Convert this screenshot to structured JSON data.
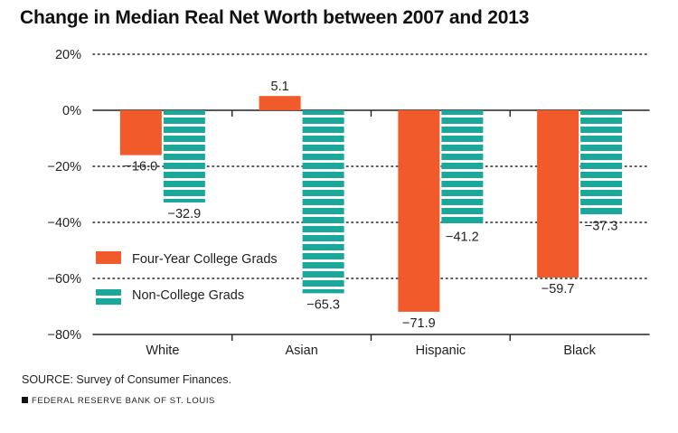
{
  "chart_data": {
    "type": "bar",
    "title": "Change in Median Real Net Worth between 2007 and 2013",
    "xlabel": "",
    "ylabel": "",
    "categories": [
      "White",
      "Asian",
      "Hispanic",
      "Black"
    ],
    "series": [
      {
        "name": "Four-Year College Grads",
        "color": "#f15a2b",
        "values": [
          -16.0,
          5.1,
          -71.9,
          -59.7
        ],
        "labels": [
          "−16.0",
          "5.1",
          "−71.9",
          "−59.7"
        ]
      },
      {
        "name": "Non-College Grads",
        "color": "#1aa89a",
        "values": [
          -32.9,
          -65.3,
          -41.2,
          -37.3
        ],
        "labels": [
          "−32.9",
          "−65.3",
          "−41.2",
          "−37.3"
        ]
      }
    ],
    "ylim": [
      -80,
      20
    ],
    "yticks": [
      20,
      0,
      -20,
      -40,
      -60,
      -80
    ],
    "ytick_labels": [
      "20%",
      "0%",
      "−20%",
      "−40%",
      "−60%",
      "−80%"
    ],
    "grid": true,
    "legend_position": "left-center"
  },
  "source": "SOURCE: Survey of Consumer Finances.",
  "footer": "FEDERAL RESERVE BANK OF ST. LOUIS"
}
